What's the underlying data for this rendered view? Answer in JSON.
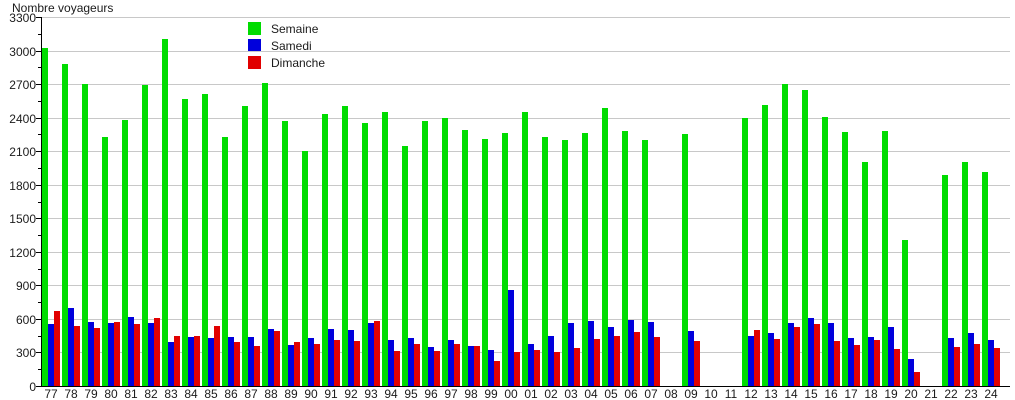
{
  "chart": {
    "title": "Nombre voyageurs",
    "colors": {
      "semaine": "#00dc00",
      "samedi": "#0000dc",
      "dimanche": "#e10000",
      "grid": "#c8c8c8",
      "axis": "#000000",
      "text": "#1b1b1b"
    }
  },
  "chart_data": {
    "type": "bar",
    "title": "Nombre voyageurs",
    "ylabel": "Nombre voyageurs",
    "xlabel": "",
    "ylim": [
      0,
      3300
    ],
    "y_tick_step": 300,
    "y_ticks": [
      0,
      300,
      600,
      900,
      1200,
      1500,
      1800,
      2100,
      2400,
      2700,
      3000,
      3300
    ],
    "grid": true,
    "legend_position": "top-inset-left",
    "legend": [
      "Semaine",
      "Samedi",
      "Dimanche"
    ],
    "categories": [
      "77",
      "78",
      "79",
      "80",
      "81",
      "82",
      "83",
      "84",
      "85",
      "86",
      "87",
      "88",
      "89",
      "90",
      "91",
      "92",
      "93",
      "94",
      "95",
      "96",
      "97",
      "98",
      "99",
      "00",
      "01",
      "02",
      "03",
      "04",
      "05",
      "06",
      "07",
      "08",
      "09",
      "10",
      "11",
      "12",
      "13",
      "14",
      "15",
      "16",
      "17",
      "18",
      "19",
      "20",
      "21",
      "22",
      "23",
      "24"
    ],
    "series": [
      {
        "name": "Semaine",
        "color": "#00dc00",
        "values": [
          3020,
          2880,
          2700,
          2230,
          2380,
          2690,
          3100,
          2565,
          2615,
          2230,
          2500,
          2710,
          2370,
          2105,
          2430,
          2500,
          2350,
          2450,
          2145,
          2370,
          2400,
          2290,
          2210,
          2260,
          2450,
          2230,
          2200,
          2265,
          2490,
          2280,
          2200,
          null,
          2250,
          null,
          null,
          2400,
          2515,
          2705,
          2645,
          2410,
          2275,
          2000,
          2280,
          1310,
          null,
          1890,
          2000,
          1915
        ]
      },
      {
        "name": "Samedi",
        "color": "#0000dc",
        "values": [
          550,
          700,
          570,
          560,
          620,
          560,
          390,
          440,
          430,
          440,
          440,
          510,
          370,
          430,
          510,
          500,
          560,
          410,
          430,
          350,
          410,
          360,
          320,
          860,
          380,
          450,
          560,
          580,
          530,
          590,
          570,
          null,
          490,
          null,
          null,
          445,
          475,
          560,
          610,
          565,
          425,
          435,
          525,
          240,
          null,
          430,
          470,
          410
        ]
      },
      {
        "name": "Dimanche",
        "color": "#e10000",
        "values": [
          670,
          540,
          520,
          570,
          550,
          610,
          450,
          450,
          540,
          390,
          360,
          490,
          390,
          380,
          410,
          400,
          580,
          310,
          380,
          315,
          380,
          360,
          220,
          300,
          320,
          300,
          340,
          420,
          450,
          480,
          440,
          null,
          400,
          null,
          null,
          500,
          420,
          525,
          550,
          405,
          365,
          410,
          335,
          125,
          null,
          350,
          375,
          340
        ]
      }
    ]
  }
}
